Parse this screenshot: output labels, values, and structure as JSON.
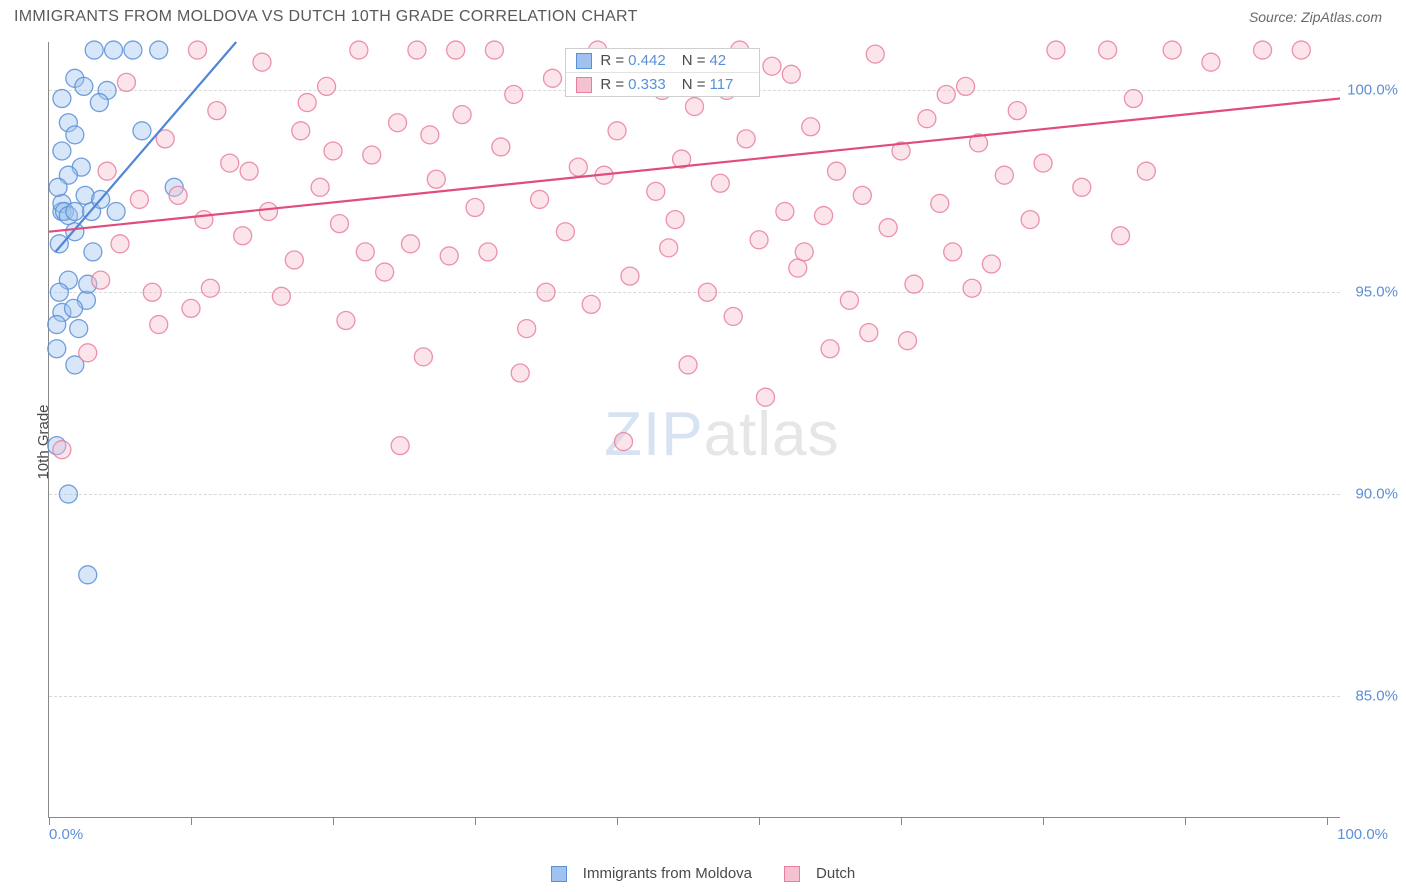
{
  "header": {
    "title": "IMMIGRANTS FROM MOLDOVA VS DUTCH 10TH GRADE CORRELATION CHART",
    "source": "Source: ZipAtlas.com"
  },
  "watermark": {
    "part1": "ZIP",
    "part2": "atlas"
  },
  "chart": {
    "type": "scatter",
    "background_color": "#ffffff",
    "grid_color": "#d8d8d8",
    "axis_color": "#888888",
    "tick_label_color": "#5b8fd6",
    "axis_label_color": "#4a4a4a",
    "yaxis_label": "10th Grade",
    "xlim": [
      0,
      100
    ],
    "ylim": [
      82,
      101.2
    ],
    "ytick_values": [
      85.0,
      90.0,
      95.0,
      100.0
    ],
    "ytick_labels": [
      "85.0%",
      "90.0%",
      "95.0%",
      "100.0%"
    ],
    "xtick_values": [
      0,
      11,
      22,
      33,
      44,
      55,
      66,
      77,
      88,
      99
    ],
    "xaxis_min_label": "0.0%",
    "xaxis_max_label": "100.0%",
    "marker_radius": 9,
    "marker_opacity": 0.42,
    "marker_border_opacity": 0.85,
    "line_width": 2.2,
    "series": [
      {
        "name": "Immigrants from Moldova",
        "color_fill": "#9fc3ee",
        "color_border": "#5b8fd6",
        "color_line": "#4f86d8",
        "R": "0.442",
        "N": "42",
        "trend": {
          "x1": 0.5,
          "y1": 96.0,
          "x2": 14.5,
          "y2": 101.2
        },
        "points": [
          [
            0.8,
            96.2
          ],
          [
            1.0,
            97.0
          ],
          [
            1.0,
            97.2
          ],
          [
            1.2,
            97.0
          ],
          [
            1.5,
            96.9
          ],
          [
            1.5,
            99.2
          ],
          [
            2.0,
            97.0
          ],
          [
            2.0,
            96.5
          ],
          [
            2.5,
            98.1
          ],
          [
            2.3,
            94.1
          ],
          [
            1.0,
            94.5
          ],
          [
            1.5,
            95.3
          ],
          [
            0.8,
            95.0
          ],
          [
            0.6,
            93.6
          ],
          [
            2.0,
            93.2
          ],
          [
            2.8,
            97.4
          ],
          [
            3.3,
            97.0
          ],
          [
            2.9,
            94.8
          ],
          [
            0.6,
            94.2
          ],
          [
            3.0,
            95.2
          ],
          [
            4.0,
            97.3
          ],
          [
            5.0,
            101.0
          ],
          [
            6.5,
            101.0
          ],
          [
            8.5,
            101.0
          ],
          [
            3.5,
            101.0
          ],
          [
            4.5,
            100.0
          ],
          [
            2.0,
            100.3
          ],
          [
            1.0,
            98.5
          ],
          [
            1.5,
            90.0
          ],
          [
            3.0,
            88.0
          ],
          [
            0.6,
            91.2
          ],
          [
            9.7,
            97.6
          ],
          [
            7.2,
            99.0
          ],
          [
            3.9,
            99.7
          ],
          [
            1.5,
            97.9
          ],
          [
            2.0,
            98.9
          ],
          [
            2.7,
            100.1
          ],
          [
            1.0,
            99.8
          ],
          [
            5.2,
            97.0
          ],
          [
            0.7,
            97.6
          ],
          [
            3.4,
            96.0
          ],
          [
            1.9,
            94.6
          ]
        ]
      },
      {
        "name": "Dutch",
        "color_fill": "#f5c2cf",
        "color_border": "#e97fa0",
        "color_line": "#e14d7b",
        "R": "0.333",
        "N": "117",
        "trend": {
          "x1": 0,
          "y1": 96.5,
          "x2": 100,
          "y2": 99.8
        },
        "points": [
          [
            1.0,
            91.1
          ],
          [
            4.0,
            95.3
          ],
          [
            5.5,
            96.2
          ],
          [
            7.0,
            97.3
          ],
          [
            8.0,
            95.0
          ],
          [
            10.0,
            97.4
          ],
          [
            11.0,
            94.6
          ],
          [
            12.0,
            96.8
          ],
          [
            12.5,
            95.1
          ],
          [
            14.0,
            98.2
          ],
          [
            15.0,
            96.4
          ],
          [
            15.5,
            98.0
          ],
          [
            17.0,
            97.0
          ],
          [
            18.0,
            94.9
          ],
          [
            19.0,
            95.8
          ],
          [
            20.0,
            99.7
          ],
          [
            21.0,
            97.6
          ],
          [
            22.5,
            96.7
          ],
          [
            23.0,
            94.3
          ],
          [
            24.0,
            101.0
          ],
          [
            25.0,
            98.4
          ],
          [
            26.0,
            95.5
          ],
          [
            27.0,
            99.2
          ],
          [
            27.2,
            91.2
          ],
          [
            28.0,
            96.2
          ],
          [
            29.5,
            98.9
          ],
          [
            30.0,
            97.8
          ],
          [
            31.0,
            95.9
          ],
          [
            32.0,
            99.4
          ],
          [
            33.0,
            97.1
          ],
          [
            34.0,
            96.0
          ],
          [
            35.0,
            98.6
          ],
          [
            36.0,
            99.9
          ],
          [
            37.0,
            94.1
          ],
          [
            38.0,
            97.3
          ],
          [
            39.0,
            100.3
          ],
          [
            40.0,
            96.5
          ],
          [
            41.0,
            98.1
          ],
          [
            42.0,
            94.7
          ],
          [
            43.0,
            97.9
          ],
          [
            44.0,
            99.0
          ],
          [
            44.5,
            91.3
          ],
          [
            45.0,
            95.4
          ],
          [
            46.0,
            100.8
          ],
          [
            47.0,
            97.5
          ],
          [
            48.0,
            96.1
          ],
          [
            49.0,
            98.3
          ],
          [
            50.0,
            99.6
          ],
          [
            51.0,
            95.0
          ],
          [
            52.0,
            97.7
          ],
          [
            53.0,
            94.4
          ],
          [
            54.0,
            98.8
          ],
          [
            55.0,
            96.3
          ],
          [
            55.5,
            92.4
          ],
          [
            56.0,
            100.6
          ],
          [
            57.0,
            97.0
          ],
          [
            58.0,
            95.6
          ],
          [
            59.0,
            99.1
          ],
          [
            60.0,
            96.9
          ],
          [
            60.5,
            93.6
          ],
          [
            61.0,
            98.0
          ],
          [
            62.0,
            94.8
          ],
          [
            63.0,
            97.4
          ],
          [
            64.0,
            100.9
          ],
          [
            65.0,
            96.6
          ],
          [
            66.0,
            98.5
          ],
          [
            67.0,
            95.2
          ],
          [
            68.0,
            99.3
          ],
          [
            69.0,
            97.2
          ],
          [
            70.0,
            96.0
          ],
          [
            71.0,
            100.1
          ],
          [
            72.0,
            98.7
          ],
          [
            73.0,
            95.7
          ],
          [
            74.0,
            97.9
          ],
          [
            75.0,
            99.5
          ],
          [
            76.0,
            96.8
          ],
          [
            77.0,
            98.2
          ],
          [
            78.0,
            101.0
          ],
          [
            80.0,
            97.6
          ],
          [
            82.0,
            101.0
          ],
          [
            83.0,
            96.4
          ],
          [
            84.0,
            99.8
          ],
          [
            85.0,
            98.0
          ],
          [
            87.0,
            101.0
          ],
          [
            90.0,
            100.7
          ],
          [
            94.0,
            101.0
          ],
          [
            97.0,
            101.0
          ],
          [
            9.0,
            98.8
          ],
          [
            13.0,
            99.5
          ],
          [
            16.5,
            100.7
          ],
          [
            19.5,
            99.0
          ],
          [
            21.5,
            100.1
          ],
          [
            28.5,
            101.0
          ],
          [
            31.5,
            101.0
          ],
          [
            34.5,
            101.0
          ],
          [
            38.5,
            95.0
          ],
          [
            42.5,
            101.0
          ],
          [
            47.5,
            100.0
          ],
          [
            53.5,
            101.0
          ],
          [
            57.5,
            100.4
          ],
          [
            66.5,
            93.8
          ],
          [
            71.5,
            95.1
          ],
          [
            6.0,
            100.2
          ],
          [
            4.5,
            98.0
          ],
          [
            3.0,
            93.5
          ],
          [
            29.0,
            93.4
          ],
          [
            36.5,
            93.0
          ],
          [
            49.5,
            93.2
          ],
          [
            48.5,
            96.8
          ],
          [
            52.5,
            100.0
          ],
          [
            58.5,
            96.0
          ],
          [
            63.5,
            94.0
          ],
          [
            24.5,
            96.0
          ],
          [
            22.0,
            98.5
          ],
          [
            11.5,
            101.0
          ],
          [
            8.5,
            94.2
          ],
          [
            69.5,
            99.9
          ]
        ]
      }
    ]
  },
  "legend": {
    "series1_label": "Immigrants from Moldova",
    "series2_label": "Dutch"
  },
  "statsbox": {
    "r_label": "R =",
    "n_label": "N ="
  }
}
